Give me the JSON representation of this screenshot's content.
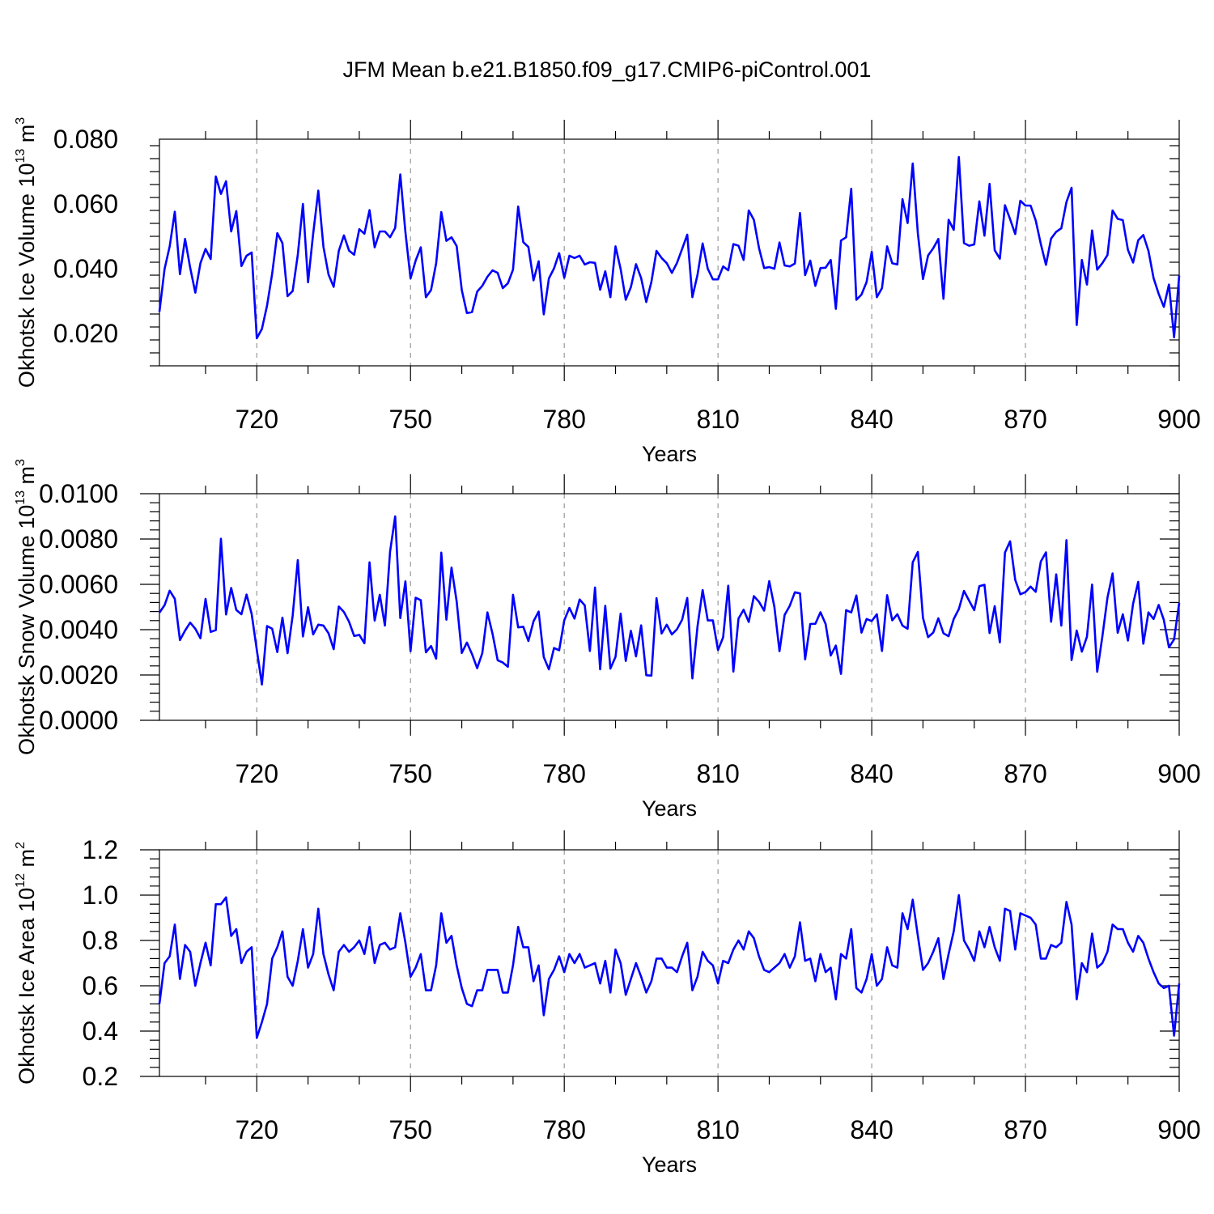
{
  "chart_data": {
    "title": "JFM Mean b.e21.B1850.f09_g17.CMIP6-piControl.001",
    "type": "line",
    "x_start": 701,
    "x_end": 900,
    "xlim": [
      701,
      900
    ],
    "xticks": [
      720,
      750,
      780,
      810,
      840,
      870,
      900
    ],
    "xlabel": "Years",
    "line_color": "#0000ff",
    "panels": [
      {
        "name": "ice-volume",
        "ylabel_main": "Okhotsk Ice Volume 10",
        "ylabel_exp": "13",
        "ylabel_unit": " m",
        "ylabel_unit_exp": "3",
        "ylim": [
          0.01,
          0.08
        ],
        "yticks": [
          0.02,
          0.04,
          0.06,
          0.08
        ],
        "ytick_labels": [
          "0.020",
          "0.040",
          "0.060",
          "0.080"
        ],
        "values": [
          0.0267,
          0.0399,
          0.0469,
          0.0576,
          0.0383,
          0.0492,
          0.0403,
          0.0326,
          0.0417,
          0.0461,
          0.043,
          0.0685,
          0.0631,
          0.067,
          0.0515,
          0.0578,
          0.0408,
          0.044,
          0.045,
          0.0185,
          0.0214,
          0.0286,
          0.0385,
          0.051,
          0.0479,
          0.0315,
          0.0331,
          0.0443,
          0.06,
          0.0358,
          0.0508,
          0.0641,
          0.0468,
          0.0382,
          0.0344,
          0.0455,
          0.0503,
          0.0456,
          0.0443,
          0.0522,
          0.0508,
          0.0581,
          0.0466,
          0.0515,
          0.0515,
          0.0497,
          0.0526,
          0.0691,
          0.0513,
          0.037,
          0.0425,
          0.0466,
          0.0312,
          0.0334,
          0.0417,
          0.0575,
          0.0486,
          0.0497,
          0.047,
          0.0334,
          0.0263,
          0.0266,
          0.0329,
          0.0347,
          0.0375,
          0.0395,
          0.0387,
          0.034,
          0.0355,
          0.0397,
          0.0592,
          0.0482,
          0.0467,
          0.0364,
          0.0423,
          0.0259,
          0.037,
          0.0401,
          0.0448,
          0.0372,
          0.044,
          0.0433,
          0.044,
          0.0413,
          0.042,
          0.0418,
          0.0335,
          0.0392,
          0.0312,
          0.0469,
          0.0399,
          0.0304,
          0.0343,
          0.0414,
          0.0371,
          0.0297,
          0.0359,
          0.0455,
          0.0433,
          0.0417,
          0.0387,
          0.0418,
          0.0461,
          0.0505,
          0.0312,
          0.0381,
          0.0478,
          0.04,
          0.0367,
          0.0367,
          0.0407,
          0.0395,
          0.0476,
          0.0471,
          0.0427,
          0.058,
          0.0551,
          0.0464,
          0.0402,
          0.0405,
          0.04,
          0.0481,
          0.041,
          0.0407,
          0.0416,
          0.0572,
          0.038,
          0.0425,
          0.0347,
          0.0402,
          0.0403,
          0.0427,
          0.0276,
          0.0487,
          0.0497,
          0.0647,
          0.0304,
          0.032,
          0.0359,
          0.0452,
          0.0312,
          0.034,
          0.0469,
          0.0417,
          0.0413,
          0.0615,
          0.0541,
          0.0725,
          0.0509,
          0.0368,
          0.0441,
          0.0463,
          0.0492,
          0.0307,
          0.0551,
          0.052,
          0.0745,
          0.0479,
          0.0471,
          0.0475,
          0.0608,
          0.0502,
          0.0662,
          0.0457,
          0.0431,
          0.0596,
          0.0553,
          0.0507,
          0.061,
          0.0595,
          0.0595,
          0.0549,
          0.0476,
          0.0412,
          0.0493,
          0.0514,
          0.0525,
          0.0606,
          0.065,
          0.0226,
          0.0427,
          0.0351,
          0.0518,
          0.0397,
          0.0417,
          0.0442,
          0.058,
          0.0554,
          0.055,
          0.0458,
          0.0419,
          0.0488,
          0.0504,
          0.0455,
          0.0371,
          0.0322,
          0.0282,
          0.0351,
          0.0188,
          0.0379
        ]
      },
      {
        "name": "snow-volume",
        "ylabel_main": "Okhotsk Snow Volume 10",
        "ylabel_exp": "13",
        "ylabel_unit": " m",
        "ylabel_unit_exp": "3",
        "ylim": [
          0.0,
          0.01
        ],
        "yticks": [
          0.0,
          0.002,
          0.004,
          0.006,
          0.008,
          0.01
        ],
        "ytick_labels": [
          "0.0000",
          "0.0020",
          "0.0040",
          "0.0060",
          "0.0080",
          "0.0100"
        ],
        "values": [
          0.00475,
          0.00508,
          0.00572,
          0.00536,
          0.00354,
          0.00396,
          0.00431,
          0.00404,
          0.00362,
          0.00536,
          0.0039,
          0.00398,
          0.00801,
          0.00467,
          0.00584,
          0.00487,
          0.00468,
          0.00555,
          0.00469,
          0.00311,
          0.00158,
          0.00416,
          0.00404,
          0.00301,
          0.00453,
          0.00296,
          0.00462,
          0.00707,
          0.0037,
          0.00499,
          0.00379,
          0.00422,
          0.00418,
          0.00384,
          0.00314,
          0.00502,
          0.00478,
          0.00435,
          0.00372,
          0.00377,
          0.0034,
          0.00697,
          0.0044,
          0.00554,
          0.00418,
          0.00743,
          0.009,
          0.00451,
          0.00613,
          0.00305,
          0.00541,
          0.0053,
          0.003,
          0.00328,
          0.00272,
          0.0074,
          0.00444,
          0.00674,
          0.00525,
          0.00297,
          0.00343,
          0.00292,
          0.0023,
          0.00296,
          0.00476,
          0.00382,
          0.00265,
          0.00255,
          0.00236,
          0.00554,
          0.0041,
          0.00413,
          0.0035,
          0.00437,
          0.0048,
          0.00279,
          0.00225,
          0.00319,
          0.00309,
          0.00441,
          0.00496,
          0.00449,
          0.00533,
          0.00507,
          0.00306,
          0.00586,
          0.00225,
          0.00505,
          0.00228,
          0.0028,
          0.00471,
          0.00262,
          0.00395,
          0.00282,
          0.00419,
          0.00199,
          0.00197,
          0.00539,
          0.00383,
          0.00422,
          0.00379,
          0.00402,
          0.00444,
          0.0054,
          0.00185,
          0.00414,
          0.00575,
          0.00441,
          0.00441,
          0.0031,
          0.00366,
          0.00594,
          0.00215,
          0.00449,
          0.00488,
          0.00434,
          0.00548,
          0.00523,
          0.00484,
          0.00614,
          0.00501,
          0.00305,
          0.00465,
          0.00505,
          0.00565,
          0.0056,
          0.00269,
          0.00425,
          0.00426,
          0.00477,
          0.00425,
          0.00286,
          0.0033,
          0.00205,
          0.00486,
          0.00476,
          0.00551,
          0.00387,
          0.00447,
          0.00438,
          0.00468,
          0.00306,
          0.00552,
          0.00441,
          0.00468,
          0.00418,
          0.00404,
          0.00697,
          0.00743,
          0.00452,
          0.00367,
          0.00387,
          0.0045,
          0.00384,
          0.00371,
          0.00447,
          0.00491,
          0.00571,
          0.00528,
          0.00486,
          0.00592,
          0.00598,
          0.00385,
          0.00504,
          0.00344,
          0.0074,
          0.0079,
          0.0062,
          0.00556,
          0.00566,
          0.0059,
          0.00567,
          0.00701,
          0.00741,
          0.00435,
          0.00644,
          0.00418,
          0.00795,
          0.00266,
          0.00396,
          0.00303,
          0.00369,
          0.00599,
          0.00214,
          0.00369,
          0.00541,
          0.00648,
          0.00386,
          0.00468,
          0.00352,
          0.00514,
          0.00611,
          0.00338,
          0.00476,
          0.00447,
          0.00509,
          0.00443,
          0.00322,
          0.00357,
          0.00518
        ]
      },
      {
        "name": "ice-area",
        "ylabel_main": "Okhotsk Ice Area 10",
        "ylabel_exp": "12",
        "ylabel_unit": " m",
        "ylabel_unit_exp": "2",
        "ylim": [
          0.2,
          1.2
        ],
        "yticks": [
          0.2,
          0.4,
          0.6,
          0.8,
          1.0,
          1.2
        ],
        "ytick_labels": [
          "0.2",
          "0.4",
          "0.6",
          "0.8",
          "1.0",
          "1.2"
        ],
        "values": [
          0.52,
          0.7,
          0.73,
          0.87,
          0.63,
          0.78,
          0.75,
          0.6,
          0.7,
          0.79,
          0.69,
          0.96,
          0.96,
          0.99,
          0.82,
          0.85,
          0.7,
          0.75,
          0.77,
          0.37,
          0.44,
          0.52,
          0.72,
          0.77,
          0.84,
          0.64,
          0.6,
          0.71,
          0.85,
          0.68,
          0.74,
          0.94,
          0.74,
          0.65,
          0.58,
          0.75,
          0.78,
          0.75,
          0.77,
          0.8,
          0.74,
          0.86,
          0.7,
          0.78,
          0.79,
          0.76,
          0.77,
          0.92,
          0.79,
          0.64,
          0.68,
          0.74,
          0.58,
          0.58,
          0.69,
          0.92,
          0.79,
          0.82,
          0.69,
          0.59,
          0.52,
          0.51,
          0.58,
          0.58,
          0.67,
          0.67,
          0.67,
          0.57,
          0.57,
          0.69,
          0.86,
          0.77,
          0.77,
          0.62,
          0.69,
          0.47,
          0.63,
          0.67,
          0.73,
          0.66,
          0.74,
          0.7,
          0.74,
          0.68,
          0.69,
          0.7,
          0.61,
          0.71,
          0.57,
          0.76,
          0.7,
          0.56,
          0.63,
          0.7,
          0.64,
          0.57,
          0.62,
          0.72,
          0.72,
          0.68,
          0.68,
          0.66,
          0.73,
          0.79,
          0.58,
          0.64,
          0.75,
          0.71,
          0.69,
          0.61,
          0.71,
          0.7,
          0.76,
          0.8,
          0.76,
          0.84,
          0.81,
          0.73,
          0.67,
          0.66,
          0.68,
          0.7,
          0.74,
          0.68,
          0.73,
          0.88,
          0.71,
          0.72,
          0.62,
          0.74,
          0.66,
          0.68,
          0.54,
          0.74,
          0.72,
          0.85,
          0.59,
          0.57,
          0.63,
          0.74,
          0.6,
          0.63,
          0.77,
          0.69,
          0.68,
          0.92,
          0.85,
          0.98,
          0.82,
          0.67,
          0.7,
          0.75,
          0.81,
          0.63,
          0.74,
          0.84,
          1.0,
          0.8,
          0.76,
          0.71,
          0.84,
          0.77,
          0.86,
          0.77,
          0.71,
          0.94,
          0.93,
          0.76,
          0.92,
          0.91,
          0.9,
          0.87,
          0.72,
          0.72,
          0.78,
          0.77,
          0.79,
          0.97,
          0.87,
          0.54,
          0.7,
          0.66,
          0.83,
          0.68,
          0.7,
          0.75,
          0.87,
          0.85,
          0.85,
          0.79,
          0.75,
          0.82,
          0.79,
          0.72,
          0.66,
          0.61,
          0.59,
          0.6,
          0.38,
          0.61
        ]
      }
    ]
  }
}
